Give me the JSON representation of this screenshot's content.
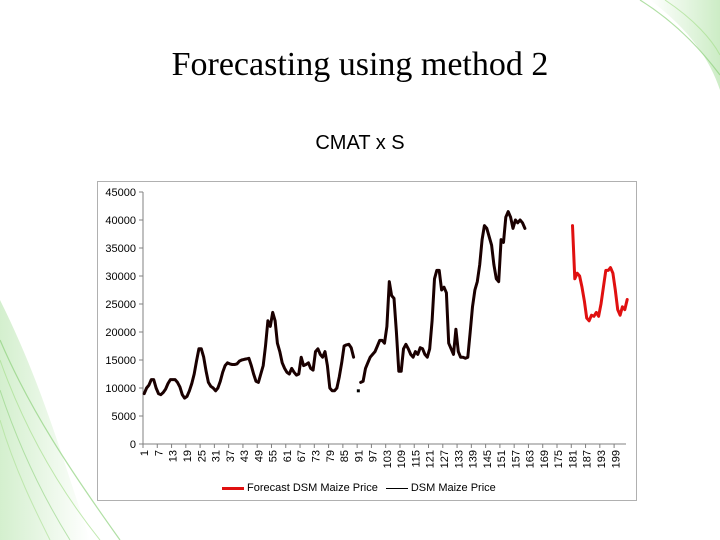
{
  "slide": {
    "title": "Forecasting using method 2"
  },
  "chart_data": {
    "type": "line",
    "title": "CMAT x S",
    "xlabel": "",
    "ylabel": "",
    "ylim": [
      0,
      45000
    ],
    "y_ticks": [
      0,
      5000,
      10000,
      15000,
      20000,
      25000,
      30000,
      35000,
      40000,
      45000
    ],
    "x_tick_labels": [
      "1",
      "7",
      "13",
      "19",
      "25",
      "31",
      "37",
      "43",
      "49",
      "55",
      "61",
      "67",
      "73",
      "79",
      "85",
      "91",
      "97",
      "103",
      "109",
      "115",
      "121",
      "127",
      "133",
      "139",
      "145",
      "151",
      "157",
      "163",
      "169",
      "175",
      "181",
      "187",
      "193",
      "199"
    ],
    "x_tick_step": 6,
    "x_range": [
      1,
      203
    ],
    "grid": false,
    "legend_position": "bottom",
    "colors": {
      "forecast": "#e01010",
      "actual": "#1a0000"
    },
    "series": [
      {
        "name": "Forecast DSM Maize Price",
        "color": "#e01010",
        "points": [
          [
            181,
            39000
          ],
          [
            182,
            29500
          ],
          [
            183,
            30500
          ],
          [
            184,
            30000
          ],
          [
            185,
            28000
          ],
          [
            186,
            25500
          ],
          [
            187,
            22500
          ],
          [
            188,
            22000
          ],
          [
            189,
            23000
          ],
          [
            190,
            22800
          ],
          [
            191,
            23500
          ],
          [
            192,
            22800
          ],
          [
            193,
            25000
          ],
          [
            194,
            28000
          ],
          [
            195,
            31000
          ],
          [
            196,
            31000
          ],
          [
            197,
            31500
          ],
          [
            198,
            30500
          ],
          [
            199,
            27500
          ],
          [
            200,
            24000
          ],
          [
            201,
            23000
          ],
          [
            202,
            24500
          ],
          [
            203,
            24000
          ],
          [
            204,
            25800
          ]
        ]
      },
      {
        "name": "DSM Maize Price",
        "color": "#1a0000",
        "segments": [
          [
            [
              1,
              9000
            ],
            [
              2,
              10000
            ],
            [
              3,
              10500
            ],
            [
              4,
              11500
            ],
            [
              5,
              11500
            ],
            [
              6,
              10000
            ],
            [
              7,
              9000
            ],
            [
              8,
              8800
            ],
            [
              9,
              9200
            ],
            [
              10,
              9800
            ],
            [
              11,
              10800
            ],
            [
              12,
              11500
            ],
            [
              13,
              11500
            ],
            [
              14,
              11500
            ],
            [
              15,
              11000
            ],
            [
              16,
              10200
            ],
            [
              17,
              8800
            ],
            [
              18,
              8200
            ],
            [
              19,
              8500
            ],
            [
              20,
              9500
            ],
            [
              21,
              10800
            ],
            [
              22,
              12500
            ],
            [
              23,
              14800
            ],
            [
              24,
              17000
            ],
            [
              25,
              17000
            ],
            [
              26,
              15500
            ],
            [
              27,
              13000
            ],
            [
              28,
              11000
            ],
            [
              29,
              10300
            ],
            [
              30,
              10000
            ],
            [
              31,
              9500
            ],
            [
              32,
              10000
            ],
            [
              33,
              11200
            ],
            [
              34,
              12800
            ],
            [
              35,
              14000
            ],
            [
              36,
              14500
            ],
            [
              37,
              14300
            ],
            [
              38,
              14200
            ],
            [
              39,
              14200
            ],
            [
              40,
              14300
            ],
            [
              41,
              14800
            ],
            [
              42,
              15000
            ],
            [
              43,
              15100
            ],
            [
              44,
              15200
            ],
            [
              45,
              15300
            ],
            [
              46,
              14000
            ],
            [
              47,
              12500
            ],
            [
              48,
              11200
            ],
            [
              49,
              11000
            ],
            [
              50,
              12500
            ],
            [
              51,
              14000
            ],
            [
              52,
              17500
            ],
            [
              53,
              22000
            ],
            [
              54,
              21000
            ],
            [
              55,
              23500
            ],
            [
              56,
              22000
            ],
            [
              57,
              18000
            ],
            [
              58,
              16500
            ],
            [
              59,
              14500
            ],
            [
              60,
              13500
            ],
            [
              61,
              12800
            ],
            [
              62,
              12500
            ],
            [
              63,
              13500
            ],
            [
              64,
              12800
            ],
            [
              65,
              12300
            ],
            [
              66,
              12500
            ],
            [
              67,
              15500
            ],
            [
              68,
              14000
            ],
            [
              69,
              14200
            ],
            [
              70,
              14500
            ],
            [
              71,
              13500
            ],
            [
              72,
              13200
            ],
            [
              73,
              16500
            ],
            [
              74,
              17000
            ],
            [
              75,
              16000
            ],
            [
              76,
              15500
            ],
            [
              77,
              16500
            ],
            [
              78,
              14000
            ],
            [
              79,
              10000
            ],
            [
              80,
              9500
            ],
            [
              81,
              9500
            ],
            [
              82,
              10000
            ],
            [
              83,
              12000
            ],
            [
              84,
              14500
            ],
            [
              85,
              17500
            ],
            [
              86,
              17700
            ],
            [
              87,
              17800
            ],
            [
              88,
              17200
            ],
            [
              89,
              15500
            ]
          ],
          [
            [
              92,
              11000
            ],
            [
              93,
              11200
            ],
            [
              94,
              13500
            ],
            [
              95,
              14500
            ],
            [
              96,
              15500
            ],
            [
              97,
              16000
            ],
            [
              98,
              16500
            ],
            [
              99,
              17500
            ],
            [
              100,
              18500
            ],
            [
              101,
              18500
            ],
            [
              102,
              18000
            ],
            [
              103,
              21000
            ],
            [
              104,
              29000
            ],
            [
              105,
              26500
            ],
            [
              106,
              26000
            ],
            [
              107,
              20000
            ],
            [
              108,
              13000
            ],
            [
              109,
              13000
            ],
            [
              110,
              17000
            ],
            [
              111,
              17800
            ],
            [
              112,
              17000
            ],
            [
              113,
              16000
            ],
            [
              114,
              15500
            ],
            [
              115,
              16500
            ],
            [
              116,
              16000
            ],
            [
              117,
              17200
            ],
            [
              118,
              17000
            ],
            [
              119,
              16000
            ],
            [
              120,
              15500
            ],
            [
              121,
              17000
            ],
            [
              122,
              22000
            ],
            [
              123,
              29500
            ],
            [
              124,
              31000
            ],
            [
              125,
              31000
            ],
            [
              126,
              27500
            ],
            [
              127,
              28000
            ],
            [
              128,
              27000
            ],
            [
              129,
              18000
            ],
            [
              130,
              17000
            ],
            [
              131,
              16000
            ],
            [
              132,
              20500
            ],
            [
              133,
              16500
            ],
            [
              134,
              15500
            ],
            [
              135,
              15500
            ],
            [
              136,
              15300
            ],
            [
              137,
              15500
            ],
            [
              138,
              20000
            ],
            [
              139,
              24500
            ],
            [
              140,
              27500
            ],
            [
              141,
              29000
            ],
            [
              142,
              32000
            ],
            [
              143,
              36500
            ],
            [
              144,
              39000
            ],
            [
              145,
              38500
            ],
            [
              146,
              37000
            ],
            [
              147,
              35500
            ],
            [
              148,
              32000
            ],
            [
              149,
              29500
            ],
            [
              150,
              29000
            ],
            [
              151,
              36500
            ],
            [
              152,
              36000
            ],
            [
              153,
              40500
            ],
            [
              154,
              41500
            ],
            [
              155,
              40500
            ],
            [
              156,
              38500
            ],
            [
              157,
              40000
            ],
            [
              158,
              39500
            ],
            [
              159,
              40000
            ],
            [
              160,
              39500
            ],
            [
              161,
              38500
            ]
          ]
        ]
      }
    ],
    "marker_points": [
      [
        91,
        9500
      ]
    ]
  }
}
